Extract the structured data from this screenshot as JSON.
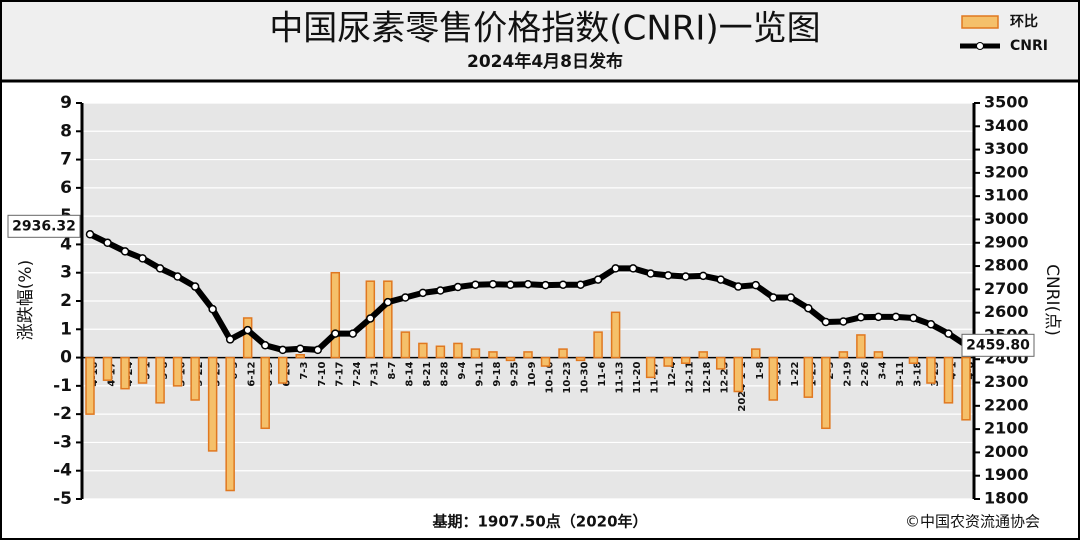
{
  "chart_data": {
    "type": "bar-line",
    "title": "中国尿素零售价格指数(CNRI)一览图",
    "subtitle": "2024年4月8日发布",
    "y_label": "涨跌幅(%)",
    "y2_label": "CNRI(点)",
    "footnote": "基期：1907.50点（2020年）",
    "source": "©中国农资流通协会",
    "categories": [
      "4-10",
      "4-17",
      "4-24",
      "5-1",
      "5-8",
      "5-16",
      "5-22",
      "5-29",
      "6-5",
      "6-12",
      "6-19",
      "6-26",
      "7-3",
      "7-10",
      "7-17",
      "7-24",
      "7-31",
      "8-7",
      "8-14",
      "8-21",
      "8-28",
      "9-4",
      "9-11",
      "9-18",
      "9-25",
      "10-9",
      "10-16",
      "10-23",
      "10-30",
      "11-6",
      "11-13",
      "11-20",
      "11-27",
      "12-4",
      "12-11",
      "12-18",
      "12-25",
      "2024-1-1",
      "1-8",
      "1-15",
      "1-22",
      "1-29",
      "2-5",
      "2-19",
      "2-26",
      "3-4",
      "3-11",
      "3-18",
      "3-25",
      "4-1",
      "4-8"
    ],
    "series": [
      {
        "name": "环比",
        "type": "bar",
        "color": "#f5c06a",
        "edge_color": "#e07820",
        "values": [
          -2.0,
          -0.8,
          -1.1,
          -0.9,
          -1.6,
          -1.0,
          -1.5,
          -3.3,
          -4.7,
          1.4,
          -2.5,
          -0.9,
          0.1,
          0.0,
          3.0,
          0.0,
          2.7,
          2.7,
          0.9,
          0.5,
          0.4,
          0.5,
          0.3,
          0.2,
          -0.1,
          0.2,
          -0.3,
          0.3,
          -0.1,
          0.9,
          1.6,
          0.0,
          -0.7,
          -0.3,
          -0.2,
          0.2,
          -0.4,
          -1.2,
          0.3,
          -1.5,
          0.0,
          -1.4,
          -2.5,
          0.2,
          0.8,
          0.2,
          0.0,
          -0.2,
          -0.9,
          -1.6,
          -2.2
        ]
      },
      {
        "name": "CNRI",
        "type": "line",
        "axis": "y2",
        "color": "#000000",
        "values": [
          2936.32,
          2900,
          2863,
          2833,
          2790,
          2755,
          2712,
          2615,
          2485,
          2525,
          2460,
          2440,
          2445,
          2440,
          2510,
          2510,
          2575,
          2645,
          2665,
          2685,
          2695,
          2710,
          2720,
          2722,
          2720,
          2722,
          2718,
          2720,
          2720,
          2742,
          2790,
          2790,
          2768,
          2760,
          2755,
          2758,
          2742,
          2712,
          2718,
          2665,
          2665,
          2619,
          2560,
          2562,
          2580,
          2582,
          2582,
          2577,
          2550,
          2510,
          2459.8
        ],
        "value_labels": [
          "2936.32",
          null,
          null,
          null,
          null,
          null,
          null,
          null,
          null,
          null,
          null,
          null,
          null,
          null,
          null,
          null,
          null,
          null,
          null,
          null,
          null,
          null,
          null,
          null,
          null,
          null,
          null,
          null,
          null,
          null,
          null,
          null,
          null,
          null,
          null,
          null,
          null,
          null,
          null,
          null,
          null,
          null,
          null,
          null,
          null,
          null,
          null,
          null,
          null,
          null,
          "2459.80"
        ]
      }
    ],
    "ylim": [
      -5,
      9
    ],
    "yticks": [
      -5,
      -4,
      -3,
      -2,
      -1,
      0,
      1,
      2,
      3,
      4,
      5,
      6,
      7,
      8,
      9
    ],
    "y2lim": [
      1800,
      3500
    ],
    "y2ticks": [
      1800,
      1900,
      2000,
      2100,
      2200,
      2300,
      2400,
      2500,
      2600,
      2700,
      2800,
      2900,
      3000,
      3100,
      3200,
      3300,
      3400,
      3500
    ],
    "grid": true,
    "legend": "upper right"
  }
}
